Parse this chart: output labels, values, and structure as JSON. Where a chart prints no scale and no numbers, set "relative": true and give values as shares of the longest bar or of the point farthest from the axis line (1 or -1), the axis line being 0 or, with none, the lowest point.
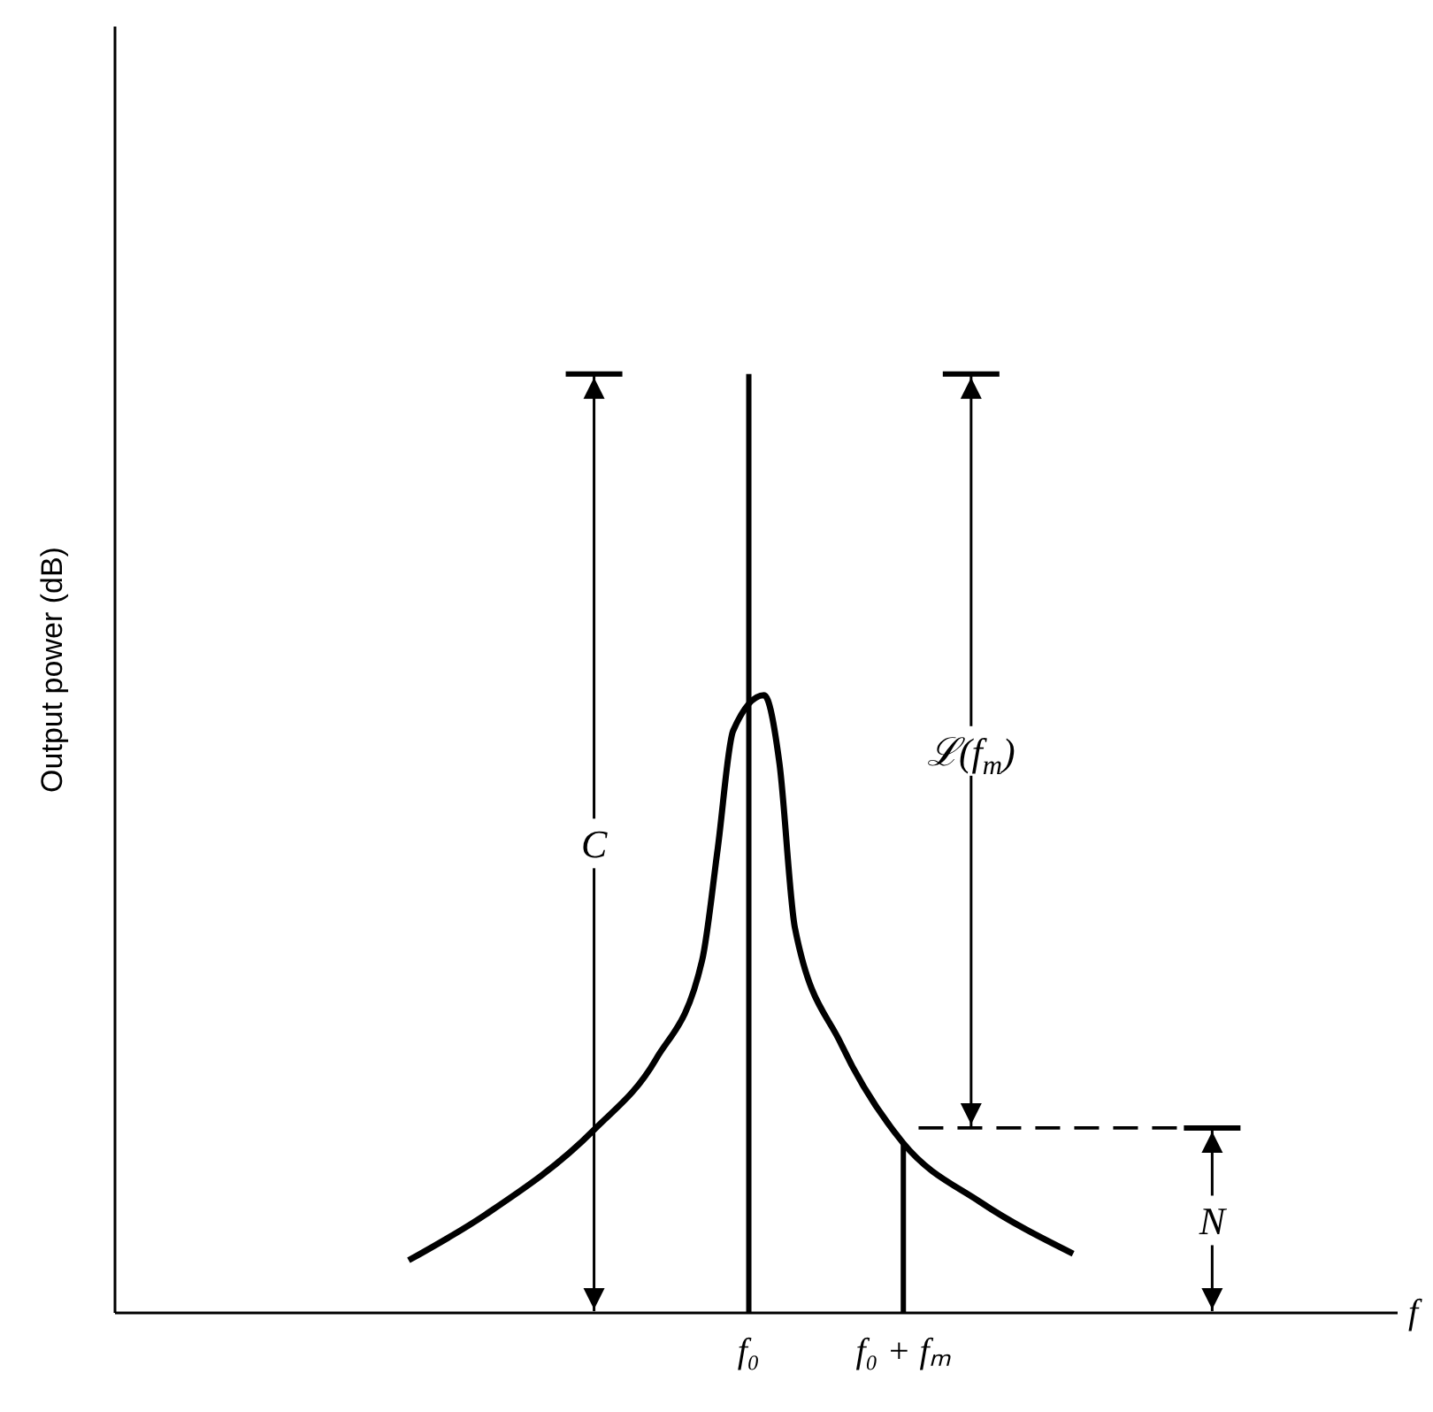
{
  "chart_data": {
    "type": "line",
    "relative": true,
    "xlabel": "f",
    "ylabel": "Output power (dB)",
    "categories": [
      null,
      null,
      null,
      null,
      null,
      null,
      null,
      null,
      null,
      null,
      null,
      null,
      null,
      null,
      null,
      null,
      null,
      null,
      null,
      null,
      null,
      null,
      null,
      null,
      null,
      null,
      null,
      null,
      null,
      null,
      null,
      null,
      null,
      null,
      null,
      null,
      null,
      null,
      null,
      null,
      null,
      "f₀",
      null,
      null,
      null,
      null,
      null,
      null,
      null,
      null,
      null,
      "f₀ + fₘ",
      null,
      null,
      null,
      null,
      null,
      null,
      null,
      null,
      null,
      null,
      null,
      null,
      null,
      null,
      null,
      null,
      null,
      null,
      null,
      null,
      null,
      null,
      null,
      null,
      null,
      null,
      null,
      null,
      null,
      null,
      null,
      null
    ],
    "series": [
      {
        "color": "#000000",
        "values": [
          null,
          null,
          null,
          null,
          null,
          null,
          null,
          null,
          null,
          null,
          null,
          null,
          null,
          null,
          null,
          null,
          null,
          null,
          null,
          0.056,
          null,
          null,
          null,
          null,
          0.105,
          null,
          null,
          null,
          null,
          null,
          null,
          0.195,
          null,
          null,
          null,
          0.27,
          null,
          null,
          0.376,
          0.494,
          0.62,
          null,
          0.658,
          0.585,
          0.41,
          null,
          null,
          0.286,
          null,
          null,
          null,
          0.181,
          null,
          null,
          null,
          null,
          0.118,
          null,
          null,
          null,
          null,
          null,
          0.063,
          null,
          null,
          null,
          null,
          null,
          null,
          null,
          null,
          null,
          null,
          null,
          null,
          null,
          null,
          null,
          null,
          null,
          null,
          null,
          null,
          null
        ]
      },
      {
        "type": "bar",
        "color": "#000000",
        "values": [
          null,
          null,
          null,
          null,
          null,
          null,
          null,
          null,
          null,
          null,
          null,
          null,
          null,
          null,
          null,
          null,
          null,
          null,
          null,
          null,
          null,
          null,
          null,
          null,
          null,
          null,
          null,
          null,
          null,
          null,
          null,
          null,
          null,
          null,
          null,
          null,
          null,
          null,
          null,
          null,
          null,
          1,
          null,
          null,
          null,
          null,
          null,
          null,
          null,
          null,
          null,
          0.181,
          null,
          null,
          null,
          null,
          null,
          null,
          null,
          null,
          null,
          null,
          null,
          null,
          null,
          null,
          null,
          null,
          null,
          null,
          null,
          null,
          null,
          null,
          null,
          null,
          null,
          null,
          null,
          null,
          null,
          null,
          null,
          null
        ]
      },
      {
        "color": "#000000",
        "line_style": "dashed",
        "values": [
          null,
          null,
          null,
          null,
          null,
          null,
          null,
          null,
          null,
          null,
          null,
          null,
          null,
          null,
          null,
          null,
          null,
          null,
          null,
          null,
          null,
          null,
          null,
          null,
          null,
          null,
          null,
          null,
          null,
          null,
          null,
          null,
          null,
          null,
          null,
          null,
          null,
          null,
          null,
          null,
          null,
          null,
          null,
          null,
          null,
          null,
          null,
          null,
          null,
          null,
          null,
          null,
          0.197,
          null,
          null,
          null,
          null,
          null,
          null,
          null,
          null,
          null,
          null,
          null,
          null,
          null,
          null,
          null,
          null,
          null,
          null,
          null,
          0.197,
          null,
          null,
          null,
          null,
          null,
          null,
          null,
          null,
          null,
          null,
          null
        ]
      }
    ],
    "annotations": [
      "C",
      "ℒ(f$_{m}$)",
      "N"
    ]
  }
}
